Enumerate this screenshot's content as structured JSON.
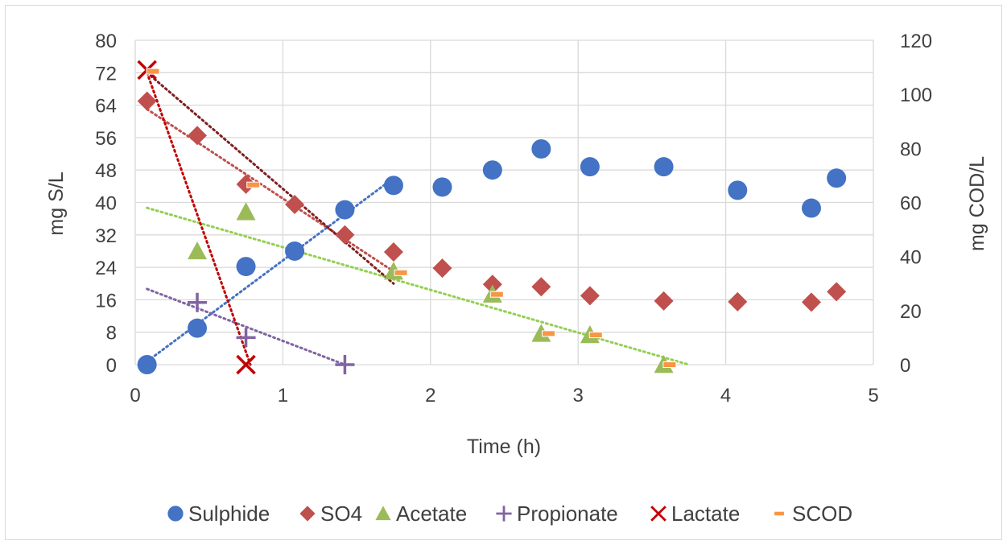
{
  "chart_data": {
    "type": "scatter",
    "title": "",
    "xlabel": "Time (h)",
    "ylabel": "mg S/L",
    "y2label": "mg COD/L",
    "xlim": [
      0,
      5
    ],
    "ylim": [
      0,
      80
    ],
    "y2lim": [
      0,
      120
    ],
    "x_ticks": [
      "0",
      "1",
      "2",
      "3",
      "4",
      "5"
    ],
    "y_ticks": [
      "0",
      "8",
      "16",
      "24",
      "32",
      "40",
      "48",
      "56",
      "64",
      "72",
      "80"
    ],
    "y2_ticks": [
      "0",
      "20",
      "40",
      "60",
      "80",
      "100",
      "120"
    ],
    "grid": true,
    "legend_position": "bottom",
    "series": [
      {
        "name": "Sulphide",
        "axis": "left",
        "marker": "circle",
        "color": "#4472C4",
        "points": [
          [
            0.08,
            0
          ],
          [
            0.42,
            9
          ],
          [
            0.75,
            24.2
          ],
          [
            1.08,
            28
          ],
          [
            1.42,
            38.2
          ],
          [
            1.75,
            44.2
          ],
          [
            2.08,
            43.8
          ],
          [
            2.42,
            48
          ],
          [
            2.75,
            53.2
          ],
          [
            3.08,
            48.8
          ],
          [
            3.58,
            48.8
          ],
          [
            4.08,
            43
          ],
          [
            4.58,
            38.6
          ],
          [
            4.75,
            46
          ]
        ]
      },
      {
        "name": "SO4",
        "axis": "left",
        "marker": "diamond",
        "color": "#C0504D",
        "points": [
          [
            0.08,
            65
          ],
          [
            0.42,
            56.5
          ],
          [
            0.75,
            44.5
          ],
          [
            1.08,
            39.5
          ],
          [
            1.42,
            32
          ],
          [
            1.75,
            27.8
          ],
          [
            2.08,
            23.8
          ],
          [
            2.42,
            19.8
          ],
          [
            2.75,
            19.2
          ],
          [
            3.08,
            17
          ],
          [
            3.58,
            15.7
          ],
          [
            4.08,
            15.5
          ],
          [
            4.58,
            15.4
          ],
          [
            4.75,
            18
          ]
        ]
      },
      {
        "name": "Acetate",
        "axis": "right",
        "marker": "triangle",
        "color": "#9BBB59",
        "points": [
          [
            0.42,
            42
          ],
          [
            0.75,
            56.5
          ],
          [
            1.75,
            34.5
          ],
          [
            2.42,
            26
          ],
          [
            2.75,
            11.5
          ],
          [
            3.08,
            11
          ],
          [
            3.58,
            0
          ]
        ]
      },
      {
        "name": "Propionate",
        "axis": "right",
        "marker": "plus",
        "color": "#8064A2",
        "points": [
          [
            0.42,
            23
          ],
          [
            0.75,
            10
          ],
          [
            1.42,
            0
          ]
        ]
      },
      {
        "name": "Lactate",
        "axis": "right",
        "marker": "x",
        "color": "#C00000",
        "points": [
          [
            0.08,
            109
          ],
          [
            0.75,
            0
          ]
        ]
      },
      {
        "name": "SCOD",
        "axis": "right",
        "marker": "dash",
        "color": "#F79646",
        "points": [
          [
            0.12,
            108.5
          ],
          [
            0.8,
            66.5
          ],
          [
            1.8,
            34
          ],
          [
            2.45,
            26
          ],
          [
            2.8,
            11.5
          ],
          [
            3.12,
            11
          ],
          [
            3.62,
            0
          ]
        ]
      }
    ],
    "trendlines": [
      {
        "series": "Sulphide",
        "axis": "left",
        "color": "#4472C4",
        "x": [
          0.08,
          1.75
        ],
        "y": [
          0.8,
          46
        ]
      },
      {
        "series": "SO4",
        "axis": "left",
        "color": "#C0504D",
        "x": [
          0.08,
          1.75
        ],
        "y": [
          63,
          23
        ]
      },
      {
        "series": "Acetate",
        "axis": "right",
        "color": "#92D050",
        "x": [
          0.08,
          3.75
        ],
        "y": [
          58,
          0
        ]
      },
      {
        "series": "Propionate",
        "axis": "right",
        "color": "#8064A2",
        "x": [
          0.08,
          1.42
        ],
        "y": [
          28,
          0
        ]
      },
      {
        "series": "Lactate",
        "axis": "right",
        "color": "#C00000",
        "x": [
          0.08,
          0.78
        ],
        "y": [
          108,
          0
        ]
      },
      {
        "series": "SCOD",
        "axis": "right",
        "color": "#7F1F1F",
        "x": [
          0.08,
          1.75
        ],
        "y": [
          108,
          30
        ]
      }
    ]
  }
}
